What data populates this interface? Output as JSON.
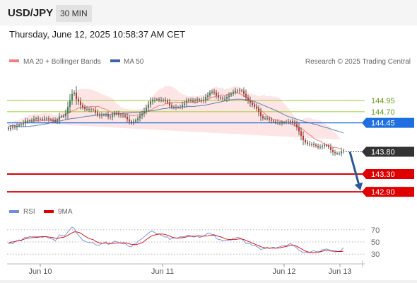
{
  "header": {
    "symbol": "USD/JPY",
    "timeframe": "30 MIN"
  },
  "datetime": "Thursday, June 12, 2025 10:58:37 AM CET",
  "legend": {
    "ma20": "MA 20 + Bollinger Bands",
    "ma50": "MA 50",
    "credit": "Research © 2025 Trading Central"
  },
  "rsi_legend": {
    "rsi": "RSI",
    "ma9": "9MA"
  },
  "colors": {
    "up": "#2e8b57",
    "down": "#c0392b",
    "ma20": "#f08080",
    "ma50": "#3a66a8",
    "band": "#fcdede",
    "resistance": "#9acd32",
    "pivot": "#1e6fe0",
    "support": "#e00000",
    "arrow": "#2b5797",
    "last": "#333333",
    "rsi": "#6b8fd8",
    "ma9": "#e00000"
  },
  "chart_data": [
    {
      "type": "candlestick",
      "title": "USD/JPY 30 MIN",
      "x_labels": [
        "Jun 10",
        "Jun 11",
        "Jun 12",
        "Jun 13"
      ],
      "ylim": [
        142.6,
        145.7
      ],
      "close": [
        144.31,
        144.34,
        144.36,
        144.35,
        144.38,
        144.4,
        144.41,
        144.44,
        144.5,
        144.5,
        144.5,
        144.51,
        144.54,
        144.55,
        144.54,
        144.54,
        144.53,
        144.55,
        144.55,
        144.53,
        144.52,
        144.51,
        144.49,
        144.52,
        144.59,
        144.6,
        144.6,
        144.66,
        144.81,
        144.96,
        145.1,
        145.13,
        144.98,
        144.93,
        144.85,
        144.8,
        144.76,
        144.76,
        144.75,
        144.75,
        144.74,
        144.68,
        144.64,
        144.61,
        144.63,
        144.63,
        144.63,
        144.59,
        144.58,
        144.62,
        144.67,
        144.65,
        144.62,
        144.63,
        144.62,
        144.59,
        144.53,
        144.48,
        144.46,
        144.48,
        144.51,
        144.55,
        144.61,
        144.66,
        144.71,
        144.79,
        144.86,
        144.93,
        144.97,
        144.97,
        144.98,
        144.96,
        144.97,
        144.97,
        144.95,
        144.91,
        144.84,
        144.81,
        144.81,
        144.8,
        144.8,
        144.81,
        144.85,
        144.89,
        144.94,
        144.97,
        144.95,
        144.94,
        144.96,
        144.98,
        144.96,
        144.94,
        144.97,
        145.03,
        145.07,
        145.13,
        145.15,
        145.13,
        145.07,
        145.02,
        145.0,
        144.99,
        144.99,
        145.03,
        145.07,
        145.1,
        145.14,
        145.17,
        145.17,
        145.18,
        145.17,
        145.1,
        145.02,
        144.96,
        144.9,
        144.85,
        144.81,
        144.77,
        144.69,
        144.6,
        144.55,
        144.55,
        144.55,
        144.52,
        144.5,
        144.48,
        144.46,
        144.45,
        144.45,
        144.45,
        144.46,
        144.47,
        144.48,
        144.49,
        144.47,
        144.42,
        144.35,
        144.26,
        144.16,
        144.06,
        144.01,
        143.98,
        143.97,
        143.97,
        143.96,
        143.93,
        143.9,
        143.91,
        143.93,
        143.95,
        143.93,
        143.9,
        143.84,
        143.79,
        143.77,
        143.76,
        143.76,
        143.81,
        143.83
      ],
      "ma20": [
        144.37,
        144.37,
        144.38,
        144.4,
        144.4,
        144.42,
        144.45,
        144.45,
        144.47,
        144.48,
        144.5,
        144.48,
        144.5,
        144.49,
        144.5,
        144.49,
        144.51,
        144.51,
        144.51,
        144.51,
        144.51,
        144.49,
        144.51,
        144.52,
        144.55,
        144.59,
        144.61,
        144.66,
        144.67,
        144.69,
        144.72,
        144.73,
        144.76,
        144.78,
        144.79,
        144.8,
        144.8,
        144.81,
        144.81,
        144.82,
        144.82,
        144.81,
        144.82,
        144.81,
        144.78,
        144.77,
        144.75,
        144.73,
        144.7,
        144.68,
        144.67,
        144.66,
        144.67,
        144.65,
        144.66,
        144.65,
        144.64,
        144.62,
        144.62,
        144.61,
        144.62,
        144.63,
        144.64,
        144.64,
        144.67,
        144.69,
        144.73,
        144.74,
        144.76,
        144.79,
        144.81,
        144.84,
        144.84,
        144.85,
        144.88,
        144.88,
        144.9,
        144.9,
        144.91,
        144.92,
        144.91,
        144.91,
        144.91,
        144.92,
        144.93,
        144.91,
        144.91,
        144.93,
        144.91,
        144.91,
        144.93,
        144.94,
        144.95,
        144.96,
        144.98,
        144.99,
        145.03,
        145.03,
        145.06,
        145.04,
        145.07,
        145.08,
        145.06,
        145.09,
        145.09,
        145.12,
        145.12,
        145.14,
        145.12,
        145.1,
        145.09,
        145.05,
        145.03,
        145.0,
        144.95,
        144.91,
        144.87,
        144.83,
        144.77,
        144.73,
        144.7,
        144.65,
        144.59,
        144.58,
        144.55,
        144.52,
        144.52,
        144.51,
        144.51,
        144.47,
        144.47,
        144.46,
        144.45,
        144.42,
        144.41,
        144.38,
        144.38,
        144.35,
        144.32,
        144.3,
        144.25,
        144.22,
        144.18,
        144.15,
        144.1,
        144.08,
        144.05,
        144.04,
        144.0,
        143.97,
        143.96,
        143.94,
        143.93,
        143.9,
        143.9,
        143.89,
        143.87,
        143.87
      ],
      "ma50": [
        144.41,
        144.39,
        144.38,
        144.38,
        144.37,
        144.37,
        144.36,
        144.36,
        144.37,
        144.37,
        144.37,
        144.38,
        144.38,
        144.39,
        144.4,
        144.4,
        144.41,
        144.42,
        144.43,
        144.44,
        144.46,
        144.47,
        144.48,
        144.49,
        144.49,
        144.5,
        144.51,
        144.52,
        144.53,
        144.54,
        144.55,
        144.55,
        144.56,
        144.56,
        144.57,
        144.58,
        144.59,
        144.6,
        144.6,
        144.61,
        144.61,
        144.62,
        144.62,
        144.63,
        144.63,
        144.63,
        144.64,
        144.64,
        144.64,
        144.65,
        144.65,
        144.65,
        144.66,
        144.66,
        144.66,
        144.67,
        144.67,
        144.67,
        144.68,
        144.68,
        144.68,
        144.69,
        144.69,
        144.7,
        144.7,
        144.7,
        144.71,
        144.72,
        144.72,
        144.73,
        144.74,
        144.75,
        144.76,
        144.77,
        144.77,
        144.78,
        144.79,
        144.79,
        144.79,
        144.8,
        144.8,
        144.8,
        144.81,
        144.81,
        144.81,
        144.82,
        144.82,
        144.82,
        144.82,
        144.83,
        144.83,
        144.84,
        144.84,
        144.85,
        144.86,
        144.87,
        144.88,
        144.89,
        144.9,
        144.91,
        144.92,
        144.93,
        144.94,
        144.95,
        144.96,
        144.97,
        144.97,
        144.98,
        144.98,
        144.98,
        144.98,
        144.97,
        144.97,
        144.96,
        144.95,
        144.94,
        144.93,
        144.91,
        144.89,
        144.87,
        144.85,
        144.83,
        144.81,
        144.79,
        144.77,
        144.75,
        144.73,
        144.71,
        144.68,
        144.66,
        144.63,
        144.61,
        144.59,
        144.58,
        144.56,
        144.55,
        144.53,
        144.52,
        144.5,
        144.49,
        144.47,
        144.46,
        144.45,
        144.44,
        144.42,
        144.41,
        144.4,
        144.38,
        144.37,
        144.35,
        144.34,
        144.33,
        144.31,
        144.3,
        144.28,
        144.27,
        144.25,
        144.24,
        144.22,
        144.21
      ],
      "levels": [
        {
          "label": "144.95",
          "value": 144.95,
          "kind": "resistance"
        },
        {
          "label": "144.70",
          "value": 144.7,
          "kind": "resistance"
        },
        {
          "label": "144.45",
          "value": 144.45,
          "kind": "pivot"
        },
        {
          "label": "143.80",
          "value": 143.8,
          "kind": "last"
        },
        {
          "label": "143.30",
          "value": 143.3,
          "kind": "support"
        },
        {
          "label": "142.90",
          "value": 142.9,
          "kind": "support"
        }
      ],
      "forecast_arrow": {
        "from": 143.8,
        "to": 142.9
      }
    },
    {
      "type": "line",
      "title": "RSI",
      "y_ticks": [
        "70",
        "50",
        "30"
      ],
      "ylim": [
        15,
        85
      ],
      "series": [
        {
          "name": "RSI",
          "values": [
            47.7,
            48.0,
            47.0,
            50.6,
            51.4,
            53.5,
            51.8,
            56.1,
            58.1,
            57.4,
            59.1,
            58.4,
            59.4,
            58.5,
            59.2,
            58.4,
            57.6,
            58.9,
            58.2,
            56.4,
            55.1,
            54.5,
            51.9,
            55.9,
            61.7,
            60.7,
            59.9,
            62.0,
            66.4,
            70.7,
            74.4,
            72.5,
            65.0,
            61.1,
            57.4,
            52.7,
            51.5,
            50.0,
            48.6,
            49.0,
            48.9,
            45.5,
            44.9,
            45.1,
            47.6,
            48.1,
            50.3,
            45.9,
            47.0,
            49.0,
            51.2,
            50.8,
            49.0,
            48.0,
            47.4,
            47.5,
            44.6,
            42.7,
            42.0,
            46.1,
            46.7,
            51.0,
            53.2,
            55.5,
            58.5,
            61.4,
            64.6,
            67.2,
            68.0,
            65.4,
            63.6,
            63.6,
            61.0,
            59.7,
            57.8,
            58.5,
            54.2,
            55.6,
            56.8,
            56.8,
            56.6,
            58.8,
            58.3,
            58.7,
            61.0,
            61.2,
            59.8,
            58.3,
            58.4,
            60.1,
            57.6,
            58.3,
            60.0,
            61.8,
            64.7,
            64.4,
            62.2,
            62.3,
            56.3,
            53.8,
            53.9,
            51.6,
            52.4,
            52.8,
            53.2,
            53.1,
            56.4,
            56.2,
            57.7,
            56.9,
            55.1,
            51.6,
            47.7,
            47.7,
            47.2,
            43.9,
            44.8,
            42.6,
            40.9,
            37.3,
            38.7,
            39.2,
            41.2,
            39.1,
            40.3,
            41.4,
            39.4,
            41.4,
            42.1,
            43.5,
            44.4,
            43.6,
            45.8,
            47.3,
            45.2,
            42.8,
            39.9,
            36.0,
            34.6,
            32.4,
            32.8,
            32.4,
            32.9,
            34.6,
            35.6,
            34.4,
            33.7,
            34.5,
            37.0,
            37.9,
            38.6,
            37.3,
            34.8,
            34.6,
            33.6,
            34.2,
            33.9,
            36.8,
            40.6
          ]
        },
        {
          "name": "9MA",
          "values": [
            48.0,
            49.5,
            50.1,
            50.7,
            51.9,
            52.9,
            53.0,
            54.1,
            55.4,
            56.2,
            56.8,
            56.9,
            57.2,
            57.6,
            57.8,
            58.4,
            58.7,
            58.7,
            58.6,
            58.0,
            57.6,
            57.3,
            56.2,
            55.9,
            56.6,
            57.3,
            57.8,
            59.2,
            60.9,
            63.1,
            65.1,
            66.7,
            66.6,
            66.0,
            64.7,
            62.1,
            59.7,
            57.7,
            55.7,
            54.7,
            53.7,
            51.3,
            49.6,
            48.4,
            48.0,
            48.1,
            48.4,
            47.6,
            47.5,
            47.4,
            47.8,
            48.4,
            48.5,
            48.5,
            48.6,
            48.5,
            48.0,
            46.9,
            46.1,
            45.8,
            45.4,
            46.4,
            47.4,
            48.8,
            51.0,
            54.0,
            56.4,
            59.1,
            60.5,
            61.6,
            62.4,
            63.0,
            63.1,
            62.9,
            62.2,
            61.0,
            59.8,
            58.3,
            57.2,
            56.5,
            56.4,
            56.8,
            57.0,
            57.5,
            58.4,
            59.3,
            59.6,
            59.4,
            59.5,
            59.9,
            59.9,
            59.6,
            59.6,
            59.8,
            60.2,
            60.7,
            61.0,
            61.4,
            60.6,
            59.5,
            58.5,
            57.1,
            55.8,
            54.6,
            54.2,
            53.9,
            53.8,
            54.0,
            54.5,
            55.0,
            54.9,
            54.1,
            52.6,
            51.2,
            49.9,
            48.0,
            46.8,
            45.3,
            43.9,
            42.2,
            41.3,
            40.4,
            40.1,
            39.9,
            39.9,
            40.0,
            39.9,
            39.8,
            40.2,
            41.1,
            42.0,
            42.7,
            43.4,
            44.4,
            44.5,
            44.1,
            42.8,
            40.9,
            38.9,
            36.9,
            35.1,
            33.9,
            33.0,
            32.5,
            32.7,
            33.0,
            33.3,
            33.7,
            34.7,
            35.6,
            36.3,
            36.3,
            35.8,
            35.3,
            34.9,
            34.5,
            34.2,
            34.2,
            35.1
          ]
        }
      ]
    }
  ]
}
